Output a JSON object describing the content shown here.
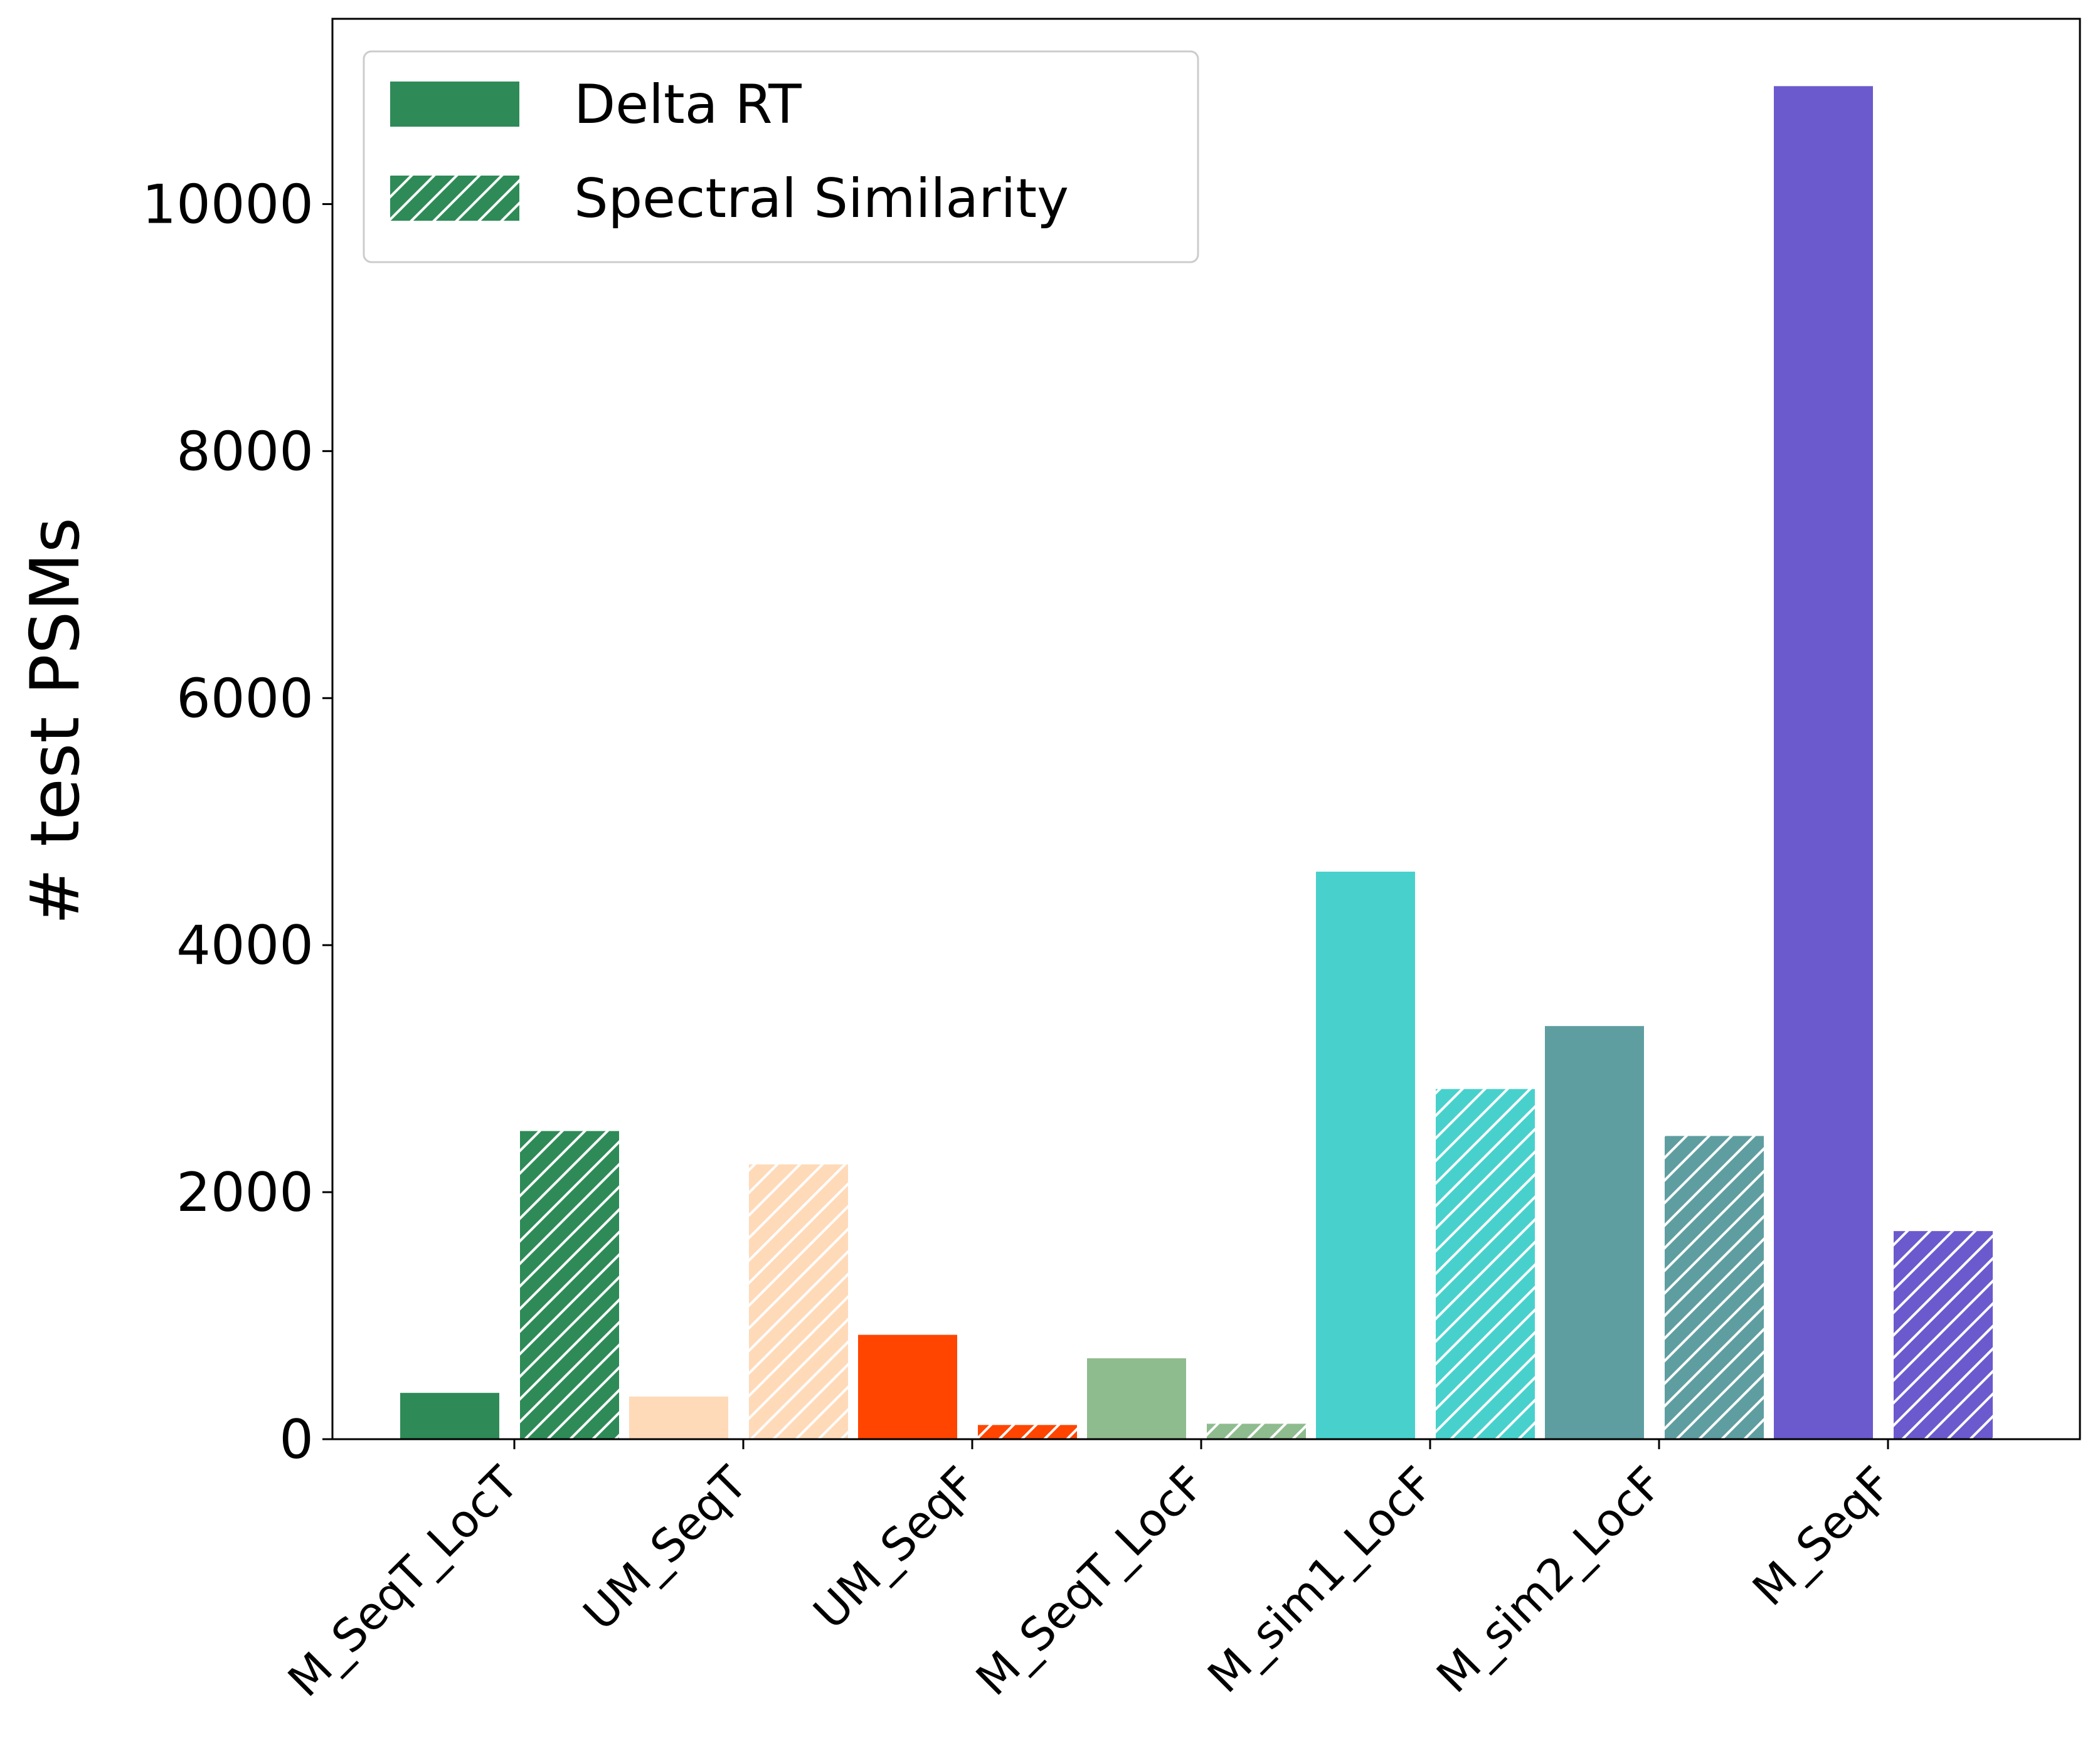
{
  "chart_data": {
    "type": "bar",
    "categories": [
      "M_SeqT_LocT",
      "UM_SeqT",
      "UM_SeqF",
      "M_SeqT_LocF",
      "M_sim1_LocF",
      "M_sim2_LocF",
      "M_SeqF"
    ],
    "category_colors": [
      "#2e8b57",
      "#ffdab9",
      "#ff4500",
      "#8fbc8f",
      "#48d1cc",
      "#5f9ea0",
      "#6a5acd"
    ],
    "series": [
      {
        "name": "Delta RT",
        "hatch": "none",
        "values": [
          380,
          350,
          850,
          660,
          4600,
          3350,
          10960
        ]
      },
      {
        "name": "Spectral Similarity",
        "hatch": "diagonal",
        "values": [
          2500,
          2230,
          120,
          130,
          2840,
          2460,
          1690
        ]
      }
    ],
    "xlabel": "",
    "ylabel": "# test PSMs",
    "ylim": [
      0,
      11500
    ],
    "yticks": [
      0,
      2000,
      4000,
      6000,
      8000,
      10000
    ],
    "grid": false,
    "legend_position": "top-left",
    "legend_color": "#2e8b57"
  }
}
